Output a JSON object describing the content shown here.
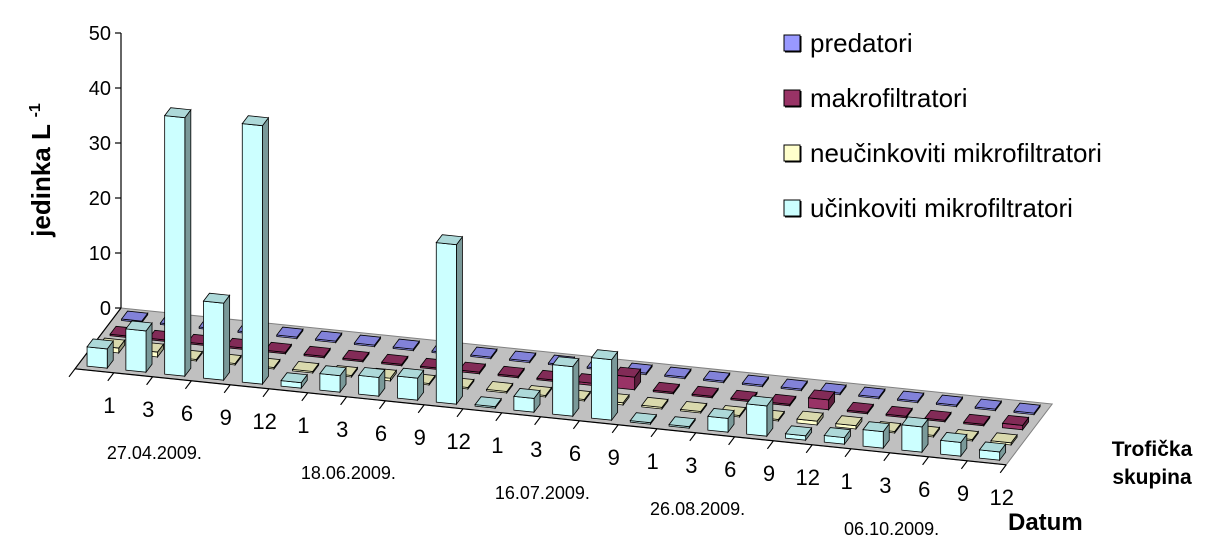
{
  "chart_data": {
    "type": "bar",
    "subtype": "3d-clustered-perspective",
    "ylabel": "jedinka L",
    "ylabel_superscript": "-1",
    "depth_axis_label": [
      "Trofička",
      "skupina"
    ],
    "x_axis_label": "Datum",
    "ylim": [
      0,
      50
    ],
    "yticks": [
      0,
      10,
      20,
      30,
      40,
      50
    ],
    "categories": [
      "1",
      "3",
      "6",
      "9",
      "12",
      "1",
      "3",
      "6",
      "9",
      "12",
      "1",
      "3",
      "6",
      "9",
      "1",
      "3",
      "6",
      "9",
      "12",
      "1",
      "3",
      "6",
      "9",
      "12"
    ],
    "date_groups": [
      "27.04.2009.",
      "18.06.2009.",
      "16.07.2009.",
      "26.08.2009.",
      "06.10.2009."
    ],
    "series": [
      {
        "name": "predatori",
        "color": "#9999ff",
        "values": [
          0,
          0,
          0,
          0,
          0,
          0,
          0,
          0,
          0,
          0,
          0,
          0,
          0,
          0,
          0,
          0,
          0,
          0,
          0,
          0,
          0,
          0,
          0,
          0
        ]
      },
      {
        "name": "makrofiltratori",
        "color": "#993366",
        "values": [
          0,
          0.1,
          0.2,
          0,
          0,
          0,
          0,
          0,
          0,
          0.3,
          0.1,
          0,
          0.4,
          2.3,
          0,
          0,
          0,
          0,
          1.8,
          0,
          0,
          0,
          0.2,
          0.8
        ]
      },
      {
        "name": "neučinkoviti mikrofiltratori",
        "color": "#ffffcc",
        "values": [
          0.9,
          0.9,
          0,
          0,
          0,
          0,
          0,
          0.5,
          0,
          0,
          0,
          0,
          0,
          0.4,
          0.3,
          0,
          0,
          0,
          0.7,
          0.6,
          0,
          0.3,
          0.2,
          0.4
        ]
      },
      {
        "name": "učinkoviti mikrofiltratori",
        "color": "#ccffff",
        "values": [
          3.5,
          7.5,
          47,
          14,
          47,
          1,
          3,
          3.4,
          4,
          29,
          0,
          2.5,
          9,
          11,
          0,
          0,
          2.5,
          5.5,
          0.8,
          1.2,
          3,
          4.6,
          2.5,
          1.5
        ]
      }
    ],
    "legend_position": "top-right",
    "grid": false
  }
}
